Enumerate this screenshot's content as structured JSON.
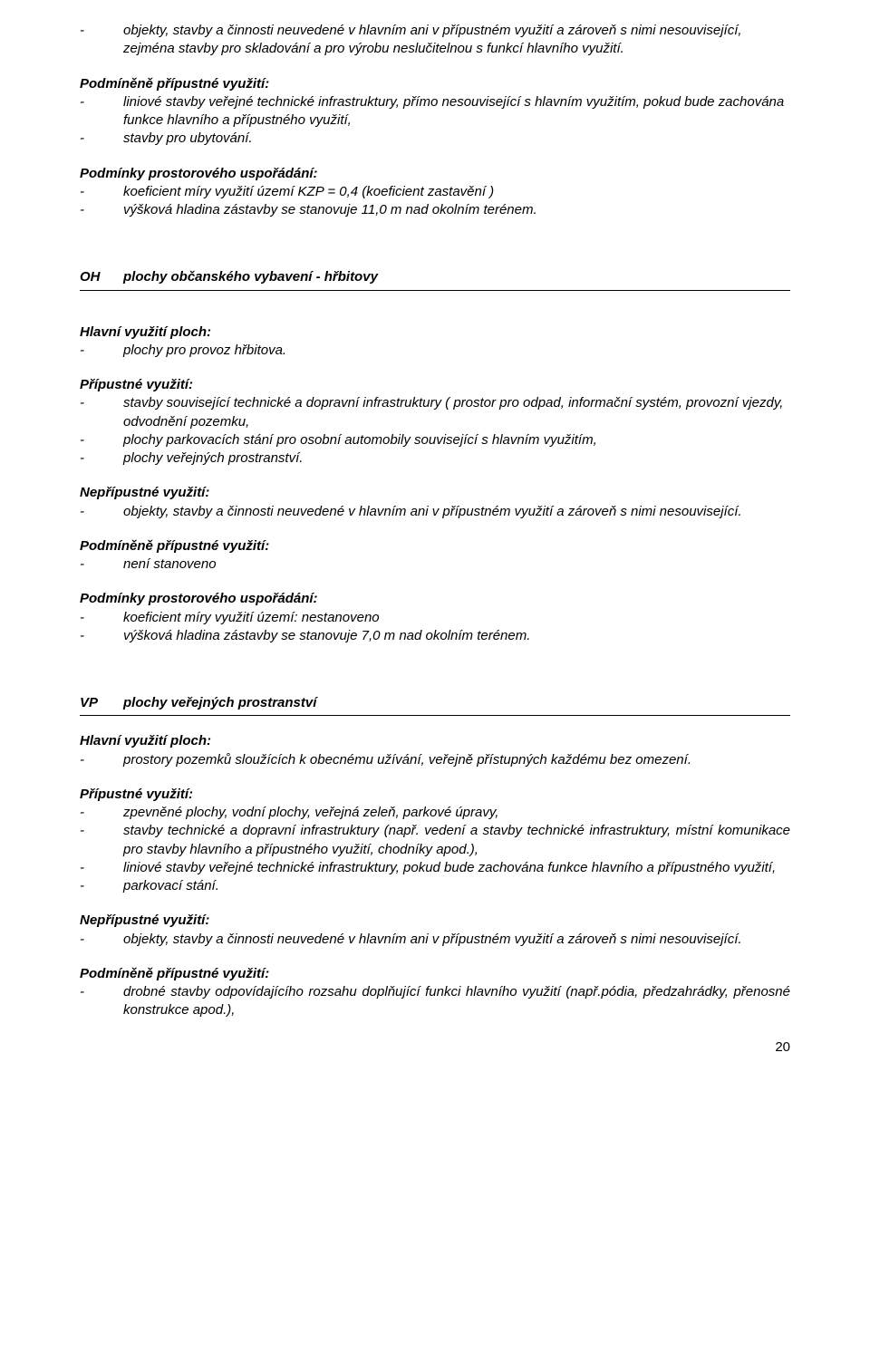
{
  "top": {
    "b1": "objekty, stavby a činnosti neuvedené v hlavním ani v přípustném využití a zároveň s nimi nesouvisející, zejména stavby pro skladování a pro výrobu neslučitelnou s funkcí hlavního využití."
  },
  "pp1": {
    "title": "Podmíněně přípustné využití:",
    "b1": "liniové stavby veřejné technické infrastruktury, přímo nesouvisející s hlavním využitím, pokud bude zachována funkce hlavního a přípustného využití,",
    "b2": "stavby pro ubytování."
  },
  "ppu1": {
    "title": "Podmínky prostorového uspořádání:",
    "b1": "koeficient míry využití území KZP = 0,4 (koeficient zastavění )",
    "b2": "výšková hladina zástavby se stanovuje 11,0 m nad okolním terénem."
  },
  "oh": {
    "code": "OH",
    "label": "plochy občanského vybavení - hřbitovy"
  },
  "hvp1": {
    "title": "Hlavní využití ploch:",
    "b1": "plochy pro provoz hřbitova."
  },
  "pv1": {
    "title": "Přípustné využití:",
    "b1": "stavby související technické a dopravní infrastruktury ( prostor pro odpad, informační systém, provozní vjezdy, odvodnění pozemku,",
    "b2": "plochy parkovacích stání pro osobní automobily související s hlavním využitím,",
    "b3": "plochy veřejných prostranství."
  },
  "nv1": {
    "title": "Nepřípustné využití:",
    "b1": "objekty, stavby a činnosti neuvedené v hlavním ani v přípustném využití a zároveň s nimi nesouvisející."
  },
  "pp2": {
    "title": "Podmíněně přípustné využití:",
    "b1": "není stanoveno"
  },
  "ppu2": {
    "title": "Podmínky prostorového uspořádání:",
    "b1": "koeficient míry využití území: nestanoveno",
    "b2": "výšková hladina zástavby se stanovuje 7,0 m nad okolním terénem."
  },
  "vp": {
    "code": "VP",
    "label": "plochy veřejných prostranství"
  },
  "hvp2": {
    "title": "Hlavní využití ploch:",
    "b1": "prostory pozemků sloužících k obecnému užívání, veřejně přístupných každému bez omezení."
  },
  "pv2": {
    "title": "Přípustné využití:",
    "b1": "zpevněné plochy, vodní plochy, veřejná zeleň, parkové úpravy,",
    "b2": "stavby technické a dopravní infrastruktury (např. vedení a stavby technické infrastruktury, místní komunikace pro stavby hlavního a přípustného využití, chodníky apod.),",
    "b3": "liniové stavby veřejné technické infrastruktury, pokud bude zachována funkce hlavního a přípustného využití,",
    "b4": "parkovací stání."
  },
  "nv2": {
    "title": "Nepřípustné využití:",
    "b1": "objekty, stavby a činnosti neuvedené v hlavním ani v přípustném využití a zároveň s nimi nesouvisející."
  },
  "pp3": {
    "title": "Podmíněně přípustné využití:",
    "b1": "drobné stavby odpovídajícího rozsahu doplňující funkci hlavního využití (např.pódia, předzahrádky, přenosné konstrukce apod.),"
  },
  "page": "20",
  "dash": "-"
}
